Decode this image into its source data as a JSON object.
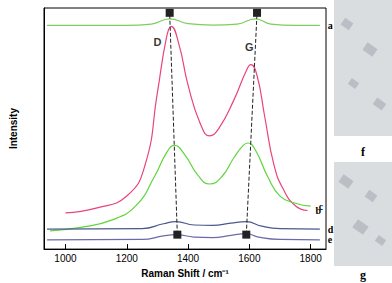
{
  "chart_data": {
    "type": "line",
    "x_label": "Raman Shift / cm⁻¹",
    "y_label": "Intensity",
    "xlim": [
      930,
      1850
    ],
    "xticks": [
      1000,
      1200,
      1400,
      1600,
      1800
    ],
    "ylim": [
      0,
      100
    ],
    "tick_labels": "x",
    "grid": false,
    "series": [
      {
        "name": "a",
        "color": "#7ccf5a",
        "x": [
          940,
          1200,
          1280,
          1340,
          1400,
          1480,
          1560,
          1620,
          1670,
          1750,
          1830
        ],
        "values": [
          92.8,
          92.8,
          93.3,
          95.5,
          93.5,
          92.9,
          93.3,
          95.5,
          93.3,
          92.8,
          92.8
        ]
      },
      {
        "name": "b",
        "color": "#e8457a",
        "x": [
          1000,
          1100,
          1200,
          1260,
          1300,
          1330,
          1345,
          1370,
          1400,
          1440,
          1470,
          1500,
          1550,
          1590,
          1605,
          1625,
          1650,
          1680,
          1710,
          1750,
          1790
        ],
        "values": [
          15,
          17,
          22,
          35,
          65,
          88,
          92.4,
          85,
          68,
          52,
          47,
          50,
          62,
          74,
          76.5,
          72,
          55,
          35,
          25,
          18,
          16
        ]
      },
      {
        "name": "c",
        "color": "#5fd43c",
        "x": [
          950,
          1050,
          1150,
          1230,
          1290,
          1330,
          1355,
          1390,
          1430,
          1470,
          1510,
          1550,
          1580,
          1595,
          1620,
          1660,
          1700,
          1750,
          1800
        ],
        "values": [
          7.6,
          9,
          12,
          18,
          30,
          40,
          43,
          39,
          31,
          27,
          30,
          38,
          43,
          44,
          41,
          30,
          22,
          19,
          17.8
        ]
      },
      {
        "name": "d",
        "color": "#4a5a8a",
        "x": [
          940,
          1250,
          1320,
          1360,
          1420,
          1480,
          1540,
          1590,
          1640,
          1700,
          1830
        ],
        "values": [
          8.3,
          8.5,
          10.5,
          11.4,
          10,
          9.8,
          10.8,
          11.4,
          9.5,
          8.5,
          8.3
        ]
      },
      {
        "name": "e",
        "color": "#6a6aa8",
        "x": [
          940,
          1250,
          1320,
          1360,
          1420,
          1480,
          1540,
          1590,
          1630,
          1700,
          1830
        ],
        "values": [
          3.8,
          4,
          5.5,
          6,
          5,
          4.8,
          5.7,
          6.4,
          5,
          4,
          3.8
        ]
      }
    ],
    "arrows": [
      {
        "x": [
          1365,
          1340
        ],
        "y": [
          6,
          98
        ]
      },
      {
        "x": [
          1590,
          1625
        ],
        "y": [
          6,
          98
        ]
      }
    ],
    "annotations": [
      {
        "text": "D",
        "x": 1300,
        "y": 86
      },
      {
        "text": "G",
        "x": 1600,
        "y": 84
      }
    ],
    "panels": [
      {
        "label": "f"
      },
      {
        "label": "g"
      }
    ]
  }
}
